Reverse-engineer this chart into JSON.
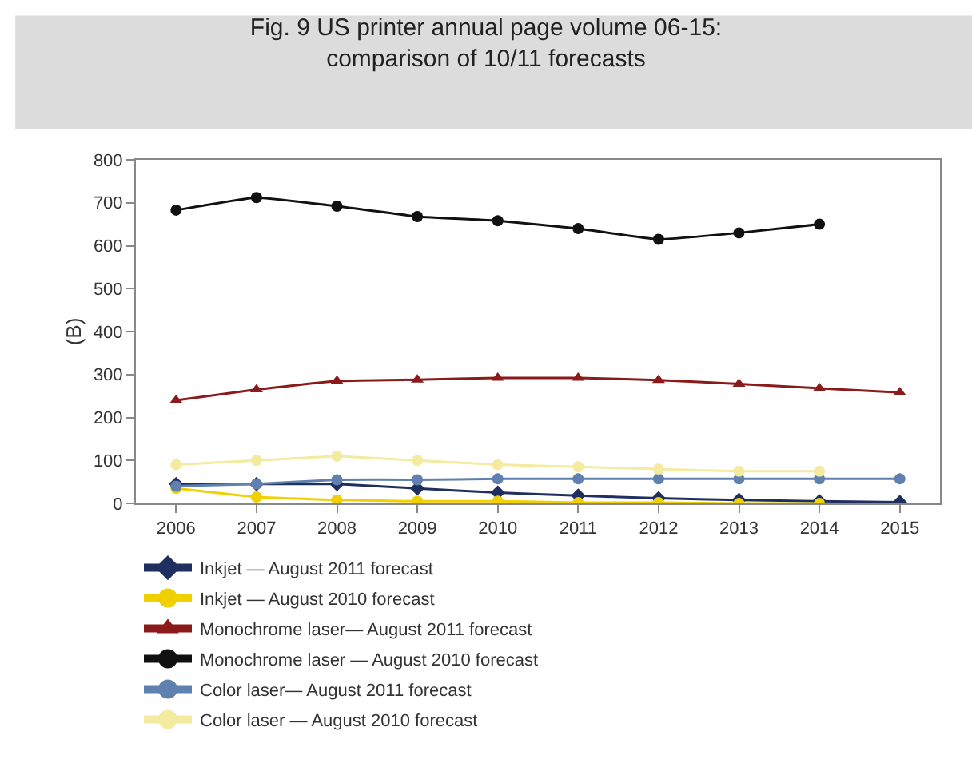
{
  "chart_data": {
    "type": "line",
    "title": "Fig. 9 US printer annual page volume 06-15:\ncomparison of 10/11 forecasts",
    "ylabel": "(B)",
    "categories": [
      "2006",
      "2007",
      "2008",
      "2009",
      "2010",
      "2011",
      "2012",
      "2013",
      "2014",
      "2015"
    ],
    "series": [
      {
        "name": "Inkjet — August 2011 forecast",
        "color": "#1f2f5f",
        "marker": "diamond",
        "values": [
          45,
          45,
          45,
          35,
          25,
          18,
          12,
          8,
          5,
          3
        ]
      },
      {
        "name": "Inkjet — August 2010 forecast",
        "color": "#f0d000",
        "marker": "circle",
        "values": [
          35,
          15,
          8,
          5,
          5,
          2,
          2,
          0,
          0,
          null
        ]
      },
      {
        "name": "Monochrome laser— August 2011 forecast",
        "color": "#8b1a1a",
        "marker": "triangle",
        "values": [
          240,
          265,
          285,
          288,
          292,
          292,
          287,
          278,
          268,
          258
        ]
      },
      {
        "name": "Monochrome laser — August 2010 forecast",
        "color": "#111111",
        "marker": "circle",
        "values": [
          683,
          712,
          692,
          668,
          658,
          640,
          615,
          630,
          650,
          null
        ]
      },
      {
        "name": "Color laser— August 2011 forecast",
        "color": "#6080b0",
        "marker": "circle",
        "values": [
          40,
          45,
          55,
          55,
          57,
          57,
          57,
          57,
          57,
          57
        ]
      },
      {
        "name": "Color laser — August 2010 forecast",
        "color": "#f2eba0",
        "marker": "circle",
        "values": [
          90,
          100,
          110,
          100,
          90,
          85,
          80,
          75,
          75,
          null
        ]
      }
    ],
    "ylim": [
      0,
      800
    ],
    "yticks": [
      0,
      100,
      200,
      300,
      400,
      500,
      600,
      700,
      800
    ],
    "legend": "bottom"
  }
}
